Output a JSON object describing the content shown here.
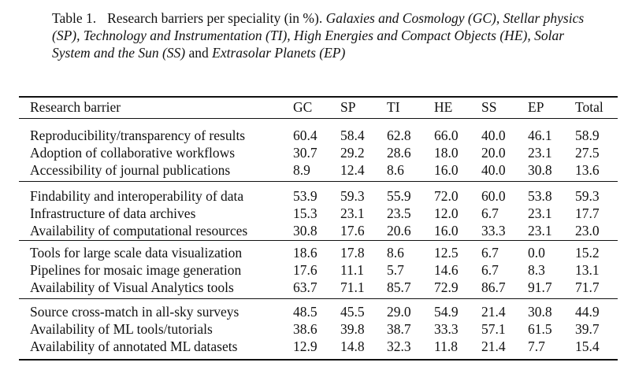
{
  "caption": {
    "label": "Table 1.",
    "parts": [
      {
        "text": "Research barriers per speciality (in %). ",
        "italic": false
      },
      {
        "text": "Galaxies and Cosmology (GC), Stellar physics (SP), Technology and Instrumentation (TI), High Energies and Compact Objects (HE), Solar System and the Sun (SS)",
        "italic": true
      },
      {
        "text": " and ",
        "italic": false
      },
      {
        "text": "Extrasolar Planets (EP)",
        "italic": true
      }
    ]
  },
  "table": {
    "columns": [
      "Research barrier",
      "GC",
      "SP",
      "TI",
      "HE",
      "SS",
      "EP",
      "Total"
    ],
    "groups": [
      [
        {
          "barrier": "Reproducibility/transparency of results",
          "values": [
            "60.4",
            "58.4",
            "62.8",
            "66.0",
            "40.0",
            "46.1",
            "58.9"
          ]
        },
        {
          "barrier": "Adoption of collaborative workflows",
          "values": [
            "30.7",
            "29.2",
            "28.6",
            "18.0",
            "20.0",
            "23.1",
            "27.5"
          ]
        },
        {
          "barrier": "Accessibility of journal publications",
          "values": [
            "8.9",
            "12.4",
            "8.6",
            "16.0",
            "40.0",
            "30.8",
            "13.6"
          ]
        }
      ],
      [
        {
          "barrier": "Findability and interoperability of data",
          "values": [
            "53.9",
            "59.3",
            "55.9",
            "72.0",
            "60.0",
            "53.8",
            "59.3"
          ]
        },
        {
          "barrier": "Infrastructure of data archives",
          "values": [
            "15.3",
            "23.1",
            "23.5",
            "12.0",
            "6.7",
            "23.1",
            "17.7"
          ]
        },
        {
          "barrier": "Availability of computational resources",
          "values": [
            "30.8",
            "17.6",
            "20.6",
            "16.0",
            "33.3",
            "23.1",
            "23.0"
          ]
        }
      ],
      [
        {
          "barrier": "Tools for large scale data visualization",
          "values": [
            "18.6",
            "17.8",
            "8.6",
            "12.5",
            "6.7",
            "0.0",
            "15.2"
          ]
        },
        {
          "barrier": "Pipelines for mosaic image generation",
          "values": [
            "17.6",
            "11.1",
            "5.7",
            "14.6",
            "6.7",
            "8.3",
            "13.1"
          ]
        },
        {
          "barrier": "Availability of Visual Analytics tools",
          "values": [
            "63.7",
            "71.1",
            "85.7",
            "72.9",
            "86.7",
            "91.7",
            "71.7"
          ]
        }
      ],
      [
        {
          "barrier": "Source cross-match in all-sky surveys",
          "values": [
            "48.5",
            "45.5",
            "29.0",
            "54.9",
            "21.4",
            "30.8",
            "44.9"
          ]
        },
        {
          "barrier": "Availability of ML tools/tutorials",
          "values": [
            "38.6",
            "39.8",
            "38.7",
            "33.3",
            "57.1",
            "61.5",
            "39.7"
          ]
        },
        {
          "barrier": "Availability of annotated ML datasets",
          "values": [
            "12.9",
            "14.8",
            "32.3",
            "11.8",
            "21.4",
            "7.7",
            "15.4"
          ]
        }
      ]
    ]
  }
}
